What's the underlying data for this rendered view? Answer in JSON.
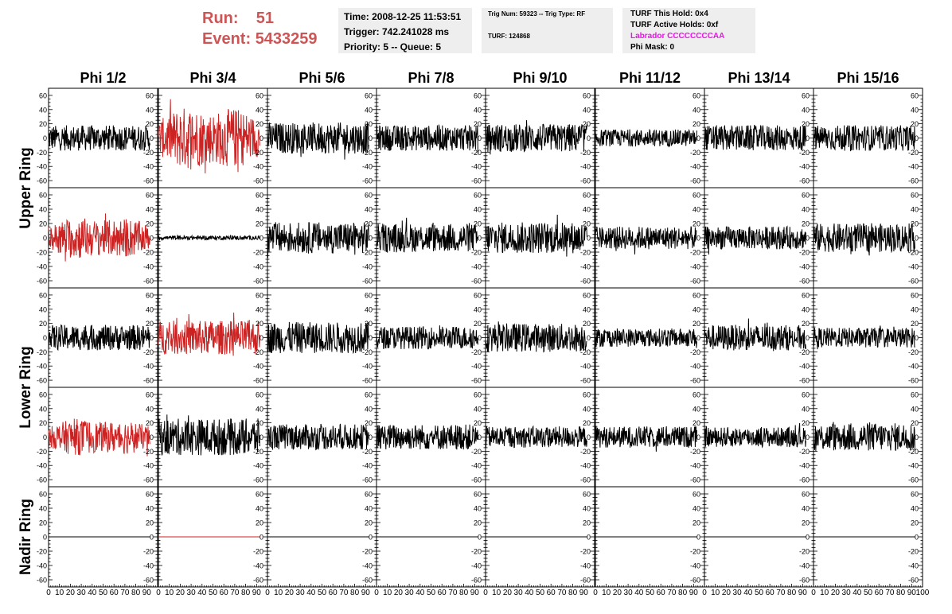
{
  "header": {
    "run_label": "Run:",
    "run_value": "51",
    "event_label": "Event:",
    "event_value": "5433259"
  },
  "info_time": {
    "time": "Time: 2008-12-25 11:53:51",
    "trigger": "Trigger: 742.241028 ms",
    "priority": "Priority: 5 -- Queue: 5"
  },
  "info_trig": {
    "trig_line": "Trig Num: 59323 -- Trig Type: RF",
    "turf_line": "TURF: 124868"
  },
  "info_turf": {
    "this_hold": "TURF This Hold: 0x4",
    "active_holds": "TURF Active Holds: 0xf",
    "labrador": "Labrador CCCCCCCCAA",
    "phi_mask": "Phi Mask: 0"
  },
  "colors": {
    "highlight": "#cc2222",
    "normal": "#000000",
    "run_text": "#cc5555",
    "labrador_text": "#ee11ee",
    "info_box_bg": "#eeeeee"
  },
  "columns": [
    "Phi 1/2",
    "Phi 3/4",
    "Phi 5/6",
    "Phi 7/8",
    "Phi 9/10",
    "Phi 11/12",
    "Phi 13/14",
    "Phi 15/16"
  ],
  "rings": [
    "Upper Ring",
    "Lower Ring",
    "Nadir Ring"
  ],
  "y_ticks": [
    "60",
    "40",
    "20",
    "0",
    "-20",
    "-40",
    "-60"
  ],
  "x_ticks": [
    "0",
    "10",
    "20",
    "30",
    "40",
    "50",
    "60",
    "70",
    "80",
    "90",
    "100"
  ],
  "chart_data": {
    "type": "line",
    "title": "",
    "xlim": [
      0,
      100
    ],
    "ylim": [
      -70,
      70
    ],
    "rows": 5,
    "cols": 8,
    "panels": [
      [
        {
          "amp": 18,
          "h": false
        },
        {
          "amp": 45,
          "h": true
        },
        {
          "amp": 22,
          "h": false
        },
        {
          "amp": 18,
          "h": false
        },
        {
          "amp": 20,
          "h": false
        },
        {
          "amp": 12,
          "h": false
        },
        {
          "amp": 18,
          "h": false
        },
        {
          "amp": 18,
          "h": false
        }
      ],
      [
        {
          "amp": 30,
          "h": true
        },
        {
          "amp": 3,
          "h": false
        },
        {
          "amp": 22,
          "h": false
        },
        {
          "amp": 20,
          "h": false
        },
        {
          "amp": 22,
          "h": false
        },
        {
          "amp": 16,
          "h": false
        },
        {
          "amp": 16,
          "h": false
        },
        {
          "amp": 20,
          "h": false
        }
      ],
      [
        {
          "amp": 18,
          "h": false
        },
        {
          "amp": 24,
          "h": true
        },
        {
          "amp": 22,
          "h": false
        },
        {
          "amp": 16,
          "h": false
        },
        {
          "amp": 20,
          "h": false
        },
        {
          "amp": 13,
          "h": false
        },
        {
          "amp": 18,
          "h": false
        },
        {
          "amp": 14,
          "h": false
        }
      ],
      [
        {
          "amp": 26,
          "h": true
        },
        {
          "amp": 26,
          "h": false
        },
        {
          "amp": 18,
          "h": false
        },
        {
          "amp": 18,
          "h": false
        },
        {
          "amp": 15,
          "h": false
        },
        {
          "amp": 15,
          "h": false
        },
        {
          "amp": 14,
          "h": false
        },
        {
          "amp": 20,
          "h": false
        }
      ],
      [
        {
          "amp": 0,
          "h": false
        },
        {
          "amp": 0,
          "h": true
        },
        {
          "amp": 0,
          "h": false
        },
        {
          "amp": 0,
          "h": false
        },
        {
          "amp": 0,
          "h": false
        },
        {
          "amp": 0,
          "h": false
        },
        {
          "amp": 0,
          "h": false
        },
        {
          "amp": 0,
          "h": false
        }
      ]
    ]
  }
}
